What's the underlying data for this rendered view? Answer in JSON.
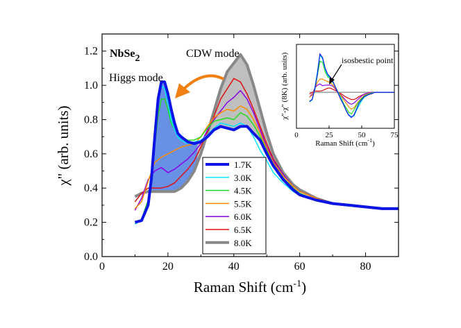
{
  "chart_data": {
    "type": "line",
    "x_axis": {
      "title_main": "Raman Shift (cm",
      "title_sup": "-1",
      "title_close": ")",
      "range": [
        0,
        90
      ],
      "ticks": [
        0,
        20,
        40,
        60,
        80
      ],
      "tick_labels": [
        "0",
        "20",
        "40",
        "60",
        "80"
      ]
    },
    "y_axis": {
      "title": "χ\" (arb. units)",
      "range": [
        0.0,
        1.3
      ],
      "ticks": [
        0.0,
        0.2,
        0.4,
        0.6,
        0.8,
        1.0,
        1.2
      ],
      "tick_labels": [
        "0.0",
        "0.2",
        "0.4",
        "0.6",
        "0.8",
        "1.0",
        "1.2"
      ]
    },
    "annotations": {
      "material_main": "NbSe",
      "material_sub": "2",
      "higgs_label": "Higgs  mode",
      "cdw_label": "CDW mode",
      "arrow_color": "#f08010"
    },
    "series": [
      {
        "name": "1.7K",
        "color": "#0a14e6",
        "width": 4,
        "x": [
          10,
          12,
          14,
          15,
          16,
          17,
          18,
          19,
          20,
          21,
          22,
          23,
          24,
          26,
          28,
          30,
          32,
          34,
          36,
          38,
          40,
          42,
          44,
          46,
          48,
          50,
          52,
          55,
          58,
          60,
          65,
          70,
          75,
          80,
          85,
          88,
          90
        ],
        "y": [
          0.2,
          0.21,
          0.3,
          0.46,
          0.7,
          0.92,
          1.02,
          1.02,
          0.95,
          0.86,
          0.78,
          0.72,
          0.7,
          0.67,
          0.66,
          0.67,
          0.7,
          0.74,
          0.76,
          0.75,
          0.74,
          0.76,
          0.76,
          0.72,
          0.68,
          0.6,
          0.53,
          0.45,
          0.39,
          0.36,
          0.33,
          0.31,
          0.3,
          0.29,
          0.28,
          0.28,
          0.28
        ]
      },
      {
        "name": "3.0K",
        "color": "#00e8ff",
        "width": 1.5,
        "x": [
          10,
          12,
          14,
          15,
          16,
          17,
          18,
          19,
          20,
          21,
          22,
          23,
          24,
          26,
          28,
          30,
          32,
          34,
          36,
          38,
          40,
          42,
          44,
          46,
          48,
          50,
          52,
          55,
          58,
          60,
          65,
          70,
          75,
          80,
          85,
          88,
          90
        ],
        "y": [
          0.19,
          0.21,
          0.31,
          0.48,
          0.72,
          0.92,
          1.0,
          0.98,
          0.9,
          0.8,
          0.74,
          0.7,
          0.68,
          0.66,
          0.67,
          0.68,
          0.71,
          0.75,
          0.78,
          0.77,
          0.76,
          0.78,
          0.76,
          0.7,
          0.62,
          0.56,
          0.49,
          0.43,
          0.38,
          0.36,
          0.33,
          0.31,
          0.3,
          0.29,
          0.28,
          0.28,
          0.28
        ]
      },
      {
        "name": "4.5K",
        "color": "#22dd22",
        "width": 1.5,
        "x": [
          10,
          12,
          14,
          15,
          16,
          17,
          18,
          19,
          20,
          21,
          22,
          23,
          24,
          26,
          28,
          30,
          32,
          34,
          36,
          38,
          40,
          42,
          44,
          46,
          48,
          50,
          52,
          55,
          58,
          60,
          65,
          70,
          75,
          80,
          85,
          88,
          90
        ],
        "y": [
          0.19,
          0.22,
          0.33,
          0.45,
          0.65,
          0.82,
          0.92,
          0.92,
          0.86,
          0.78,
          0.74,
          0.71,
          0.7,
          0.68,
          0.68,
          0.7,
          0.75,
          0.79,
          0.8,
          0.81,
          0.8,
          0.84,
          0.82,
          0.77,
          0.7,
          0.62,
          0.54,
          0.46,
          0.4,
          0.37,
          0.33,
          0.31,
          0.3,
          0.29,
          0.28,
          0.28,
          0.28
        ]
      },
      {
        "name": "5.5K",
        "color": "#ff8c00",
        "width": 1.5,
        "x": [
          10,
          12,
          14,
          16,
          18,
          20,
          22,
          24,
          26,
          28,
          30,
          32,
          34,
          36,
          38,
          40,
          42,
          44,
          46,
          48,
          50,
          52,
          55,
          58,
          60,
          65,
          70,
          75,
          80,
          85,
          88,
          90
        ],
        "y": [
          0.28,
          0.32,
          0.44,
          0.55,
          0.58,
          0.6,
          0.62,
          0.64,
          0.65,
          0.66,
          0.7,
          0.76,
          0.81,
          0.84,
          0.86,
          0.85,
          0.88,
          0.86,
          0.8,
          0.72,
          0.63,
          0.55,
          0.47,
          0.41,
          0.38,
          0.34,
          0.31,
          0.3,
          0.29,
          0.28,
          0.28,
          0.28
        ]
      },
      {
        "name": "6.0K",
        "color": "#8a00e6",
        "width": 1.5,
        "x": [
          10,
          12,
          14,
          16,
          18,
          20,
          22,
          24,
          26,
          28,
          30,
          32,
          34,
          36,
          38,
          40,
          42,
          44,
          46,
          48,
          50,
          52,
          55,
          58,
          60,
          65,
          70,
          75,
          80,
          85,
          88,
          90
        ],
        "y": [
          0.27,
          0.34,
          0.45,
          0.5,
          0.52,
          0.49,
          0.51,
          0.54,
          0.57,
          0.61,
          0.66,
          0.74,
          0.8,
          0.85,
          0.9,
          0.93,
          0.97,
          0.92,
          0.84,
          0.74,
          0.64,
          0.56,
          0.48,
          0.41,
          0.38,
          0.34,
          0.31,
          0.3,
          0.29,
          0.28,
          0.28,
          0.28
        ]
      },
      {
        "name": "6.5K",
        "color": "#e01010",
        "width": 1.5,
        "x": [
          10,
          12,
          14,
          16,
          18,
          20,
          22,
          24,
          26,
          28,
          30,
          32,
          34,
          36,
          38,
          40,
          42,
          44,
          46,
          48,
          50,
          52,
          55,
          58,
          60,
          65,
          70,
          75,
          80,
          85,
          88,
          90
        ],
        "y": [
          0.32,
          0.37,
          0.4,
          0.4,
          0.4,
          0.41,
          0.43,
          0.47,
          0.51,
          0.56,
          0.64,
          0.73,
          0.82,
          0.92,
          0.98,
          1.04,
          1.02,
          0.95,
          0.86,
          0.76,
          0.66,
          0.57,
          0.48,
          0.41,
          0.38,
          0.34,
          0.31,
          0.3,
          0.29,
          0.28,
          0.28,
          0.28
        ]
      },
      {
        "name": "8.0K",
        "color": "#888888",
        "width": 4,
        "x": [
          10,
          12,
          14,
          16,
          18,
          20,
          22,
          24,
          26,
          28,
          30,
          32,
          34,
          36,
          38,
          40,
          42,
          44,
          46,
          48,
          50,
          52,
          55,
          58,
          60,
          65,
          70,
          75,
          80,
          85,
          88,
          90
        ],
        "y": [
          0.35,
          0.37,
          0.38,
          0.38,
          0.38,
          0.38,
          0.38,
          0.4,
          0.44,
          0.5,
          0.6,
          0.72,
          0.85,
          0.98,
          1.08,
          1.13,
          1.18,
          1.12,
          1.0,
          0.86,
          0.72,
          0.6,
          0.49,
          0.42,
          0.39,
          0.34,
          0.31,
          0.3,
          0.29,
          0.28,
          0.28,
          0.28
        ]
      }
    ],
    "fills": [
      {
        "name": "higgs-difference-fill",
        "color": "#4d7de0",
        "between": [
          "1.7K",
          "8.0K"
        ],
        "x_range": [
          14,
          29
        ]
      },
      {
        "name": "cdw-difference-fill",
        "color": "#b4b4b4",
        "between": [
          "8.0K",
          "1.7K"
        ],
        "x_range": [
          29,
          55
        ]
      }
    ],
    "legend": {
      "position": "center-right",
      "entries": [
        "1.7K",
        "3.0K",
        "4.5K",
        "5.5K",
        "6.0K",
        "6.5K",
        "8.0K"
      ]
    },
    "inset": {
      "x_axis": {
        "title_main": "Raman Shift (cm",
        "title_sup": "-1",
        "title_close": ")",
        "range": [
          0,
          75
        ],
        "ticks": [
          0,
          25,
          50,
          75
        ],
        "tick_labels": [
          "0",
          "25",
          "50",
          "75"
        ]
      },
      "y_axis": {
        "title": "χ\"-χ\" (8K) (arb. units)",
        "range": [
          -0.6,
          0.8
        ]
      },
      "annotation": "isosbestic point",
      "series": [
        {
          "name": "1.7K",
          "color": "#0a14e6",
          "x": [
            10,
            12,
            14,
            16,
            18,
            20,
            22,
            24,
            26,
            28,
            30,
            32,
            34,
            36,
            38,
            40,
            42,
            44,
            46,
            48,
            50,
            52,
            55,
            58,
            60,
            65,
            70,
            75
          ],
          "y": [
            -0.15,
            -0.12,
            0.05,
            0.3,
            0.64,
            0.58,
            0.4,
            0.3,
            0.25,
            0.18,
            0.08,
            -0.02,
            -0.12,
            -0.2,
            -0.3,
            -0.38,
            -0.42,
            -0.38,
            -0.28,
            -0.18,
            -0.12,
            -0.07,
            -0.04,
            -0.02,
            0,
            0,
            0,
            0
          ]
        },
        {
          "name": "3.0K",
          "color": "#00e8ff",
          "x": [
            10,
            12,
            14,
            16,
            18,
            20,
            22,
            24,
            26,
            28,
            30,
            32,
            34,
            36,
            38,
            40,
            42,
            44,
            46,
            48,
            50,
            52,
            55,
            58,
            60,
            65,
            70,
            75
          ],
          "y": [
            -0.15,
            -0.13,
            0.06,
            0.34,
            0.62,
            0.56,
            0.38,
            0.28,
            0.24,
            0.18,
            0.08,
            -0.01,
            -0.1,
            -0.2,
            -0.3,
            -0.37,
            -0.4,
            -0.4,
            -0.3,
            -0.22,
            -0.14,
            -0.08,
            -0.04,
            -0.02,
            0,
            0,
            0,
            0
          ]
        },
        {
          "name": "4.5K",
          "color": "#22dd22",
          "x": [
            10,
            12,
            14,
            16,
            18,
            20,
            22,
            24,
            26,
            28,
            30,
            32,
            34,
            36,
            38,
            40,
            42,
            44,
            46,
            48,
            50,
            52,
            55,
            58,
            60,
            65,
            70,
            75
          ],
          "y": [
            -0.16,
            -0.12,
            0.04,
            0.28,
            0.52,
            0.5,
            0.34,
            0.26,
            0.22,
            0.16,
            0.08,
            0.0,
            -0.08,
            -0.18,
            -0.26,
            -0.33,
            -0.36,
            -0.3,
            -0.22,
            -0.15,
            -0.1,
            -0.06,
            -0.03,
            -0.01,
            0,
            0,
            0,
            0
          ]
        },
        {
          "name": "5.5K",
          "color": "#ff8c00",
          "x": [
            10,
            12,
            14,
            16,
            18,
            20,
            22,
            24,
            26,
            28,
            30,
            32,
            34,
            36,
            38,
            40,
            42,
            44,
            46,
            48,
            50,
            52,
            55,
            58,
            60,
            65,
            70,
            75
          ],
          "y": [
            -0.08,
            -0.05,
            0.06,
            0.17,
            0.22,
            0.22,
            0.2,
            0.18,
            0.16,
            0.12,
            0.06,
            0.0,
            -0.05,
            -0.12,
            -0.18,
            -0.24,
            -0.28,
            -0.26,
            -0.2,
            -0.14,
            -0.09,
            -0.05,
            -0.02,
            -0.01,
            0,
            0,
            0,
            0
          ]
        },
        {
          "name": "6.0K",
          "color": "#8a00e6",
          "x": [
            10,
            12,
            14,
            16,
            18,
            20,
            22,
            24,
            26,
            28,
            30,
            32,
            34,
            36,
            38,
            40,
            42,
            44,
            46,
            48,
            50,
            52,
            55,
            58,
            60,
            65,
            70,
            75
          ],
          "y": [
            -0.08,
            -0.03,
            0.07,
            0.12,
            0.14,
            0.11,
            0.12,
            0.12,
            0.12,
            0.1,
            0.05,
            0.0,
            -0.04,
            -0.09,
            -0.14,
            -0.18,
            -0.2,
            -0.18,
            -0.14,
            -0.1,
            -0.06,
            -0.03,
            -0.01,
            0,
            0,
            0,
            0,
            0
          ]
        },
        {
          "name": "6.5K",
          "color": "#e01010",
          "x": [
            10,
            12,
            14,
            16,
            18,
            20,
            22,
            24,
            26,
            28,
            30,
            32,
            34,
            36,
            38,
            40,
            42,
            44,
            46,
            48,
            50,
            52,
            55,
            58,
            60,
            65,
            70,
            75
          ],
          "y": [
            -0.03,
            0.0,
            0.02,
            0.02,
            0.02,
            0.03,
            0.05,
            0.07,
            0.07,
            0.05,
            0.03,
            0.0,
            -0.02,
            -0.05,
            -0.08,
            -0.1,
            -0.12,
            -0.12,
            -0.1,
            -0.07,
            -0.05,
            -0.03,
            -0.01,
            0,
            0,
            0,
            0,
            0
          ]
        },
        {
          "name": "8.0K",
          "color": "#888888",
          "x": [
            10,
            75
          ],
          "y": [
            0,
            0
          ]
        }
      ]
    }
  }
}
